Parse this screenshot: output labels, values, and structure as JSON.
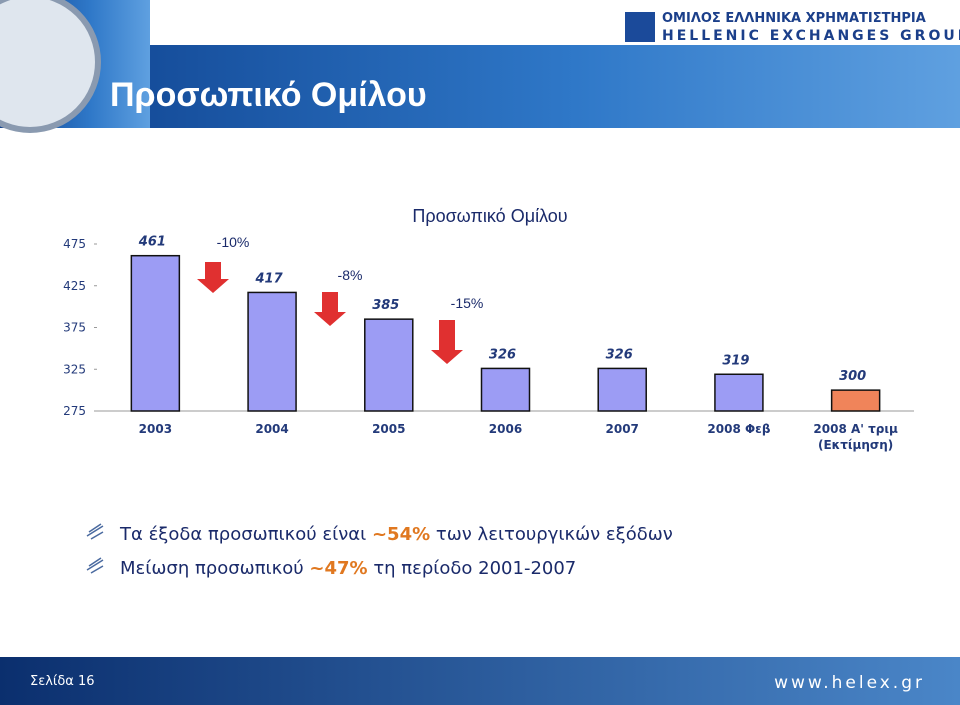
{
  "header": {
    "title": "Προσωπικό Ομίλου",
    "logo_line1": "ΟΜΙΛΟΣ ΕΛΛΗΝΙΚΑ ΧΡΗΜΑΤΙΣΤΗΡΙΑ",
    "logo_line2": "HELLENIC EXCHANGES GROUP"
  },
  "chart_data": {
    "type": "bar",
    "title": "Προσωπικό Ομίλου",
    "categories": [
      "2003",
      "2004",
      "2005",
      "2006",
      "2007",
      "2008 Φεβ",
      "2008 Α' τριμ (Εκτίμηση)"
    ],
    "values": [
      461,
      417,
      385,
      326,
      326,
      319,
      300
    ],
    "colors": [
      "#9c9cf4",
      "#9c9cf4",
      "#9c9cf4",
      "#9c9cf4",
      "#9c9cf4",
      "#9c9cf4",
      "#f0845a"
    ],
    "ylim": [
      275,
      475
    ],
    "yticks": [
      275,
      325,
      375,
      425,
      475
    ],
    "annotations": [
      "-10%",
      "-8%",
      "-15%"
    ],
    "annotation_color": "#e03030"
  },
  "bullets": [
    {
      "before": "Τα έξοδα προσωπικού είναι",
      "highlight": "~54%",
      "after": "των λειτουργικών εξόδων"
    },
    {
      "before": "Μείωση προσωπικού",
      "highlight": "~47%",
      "after": "τη περίοδο 2001-2007"
    }
  ],
  "footer": {
    "page": "Σελίδα 16",
    "url": "www.helex.gr"
  }
}
